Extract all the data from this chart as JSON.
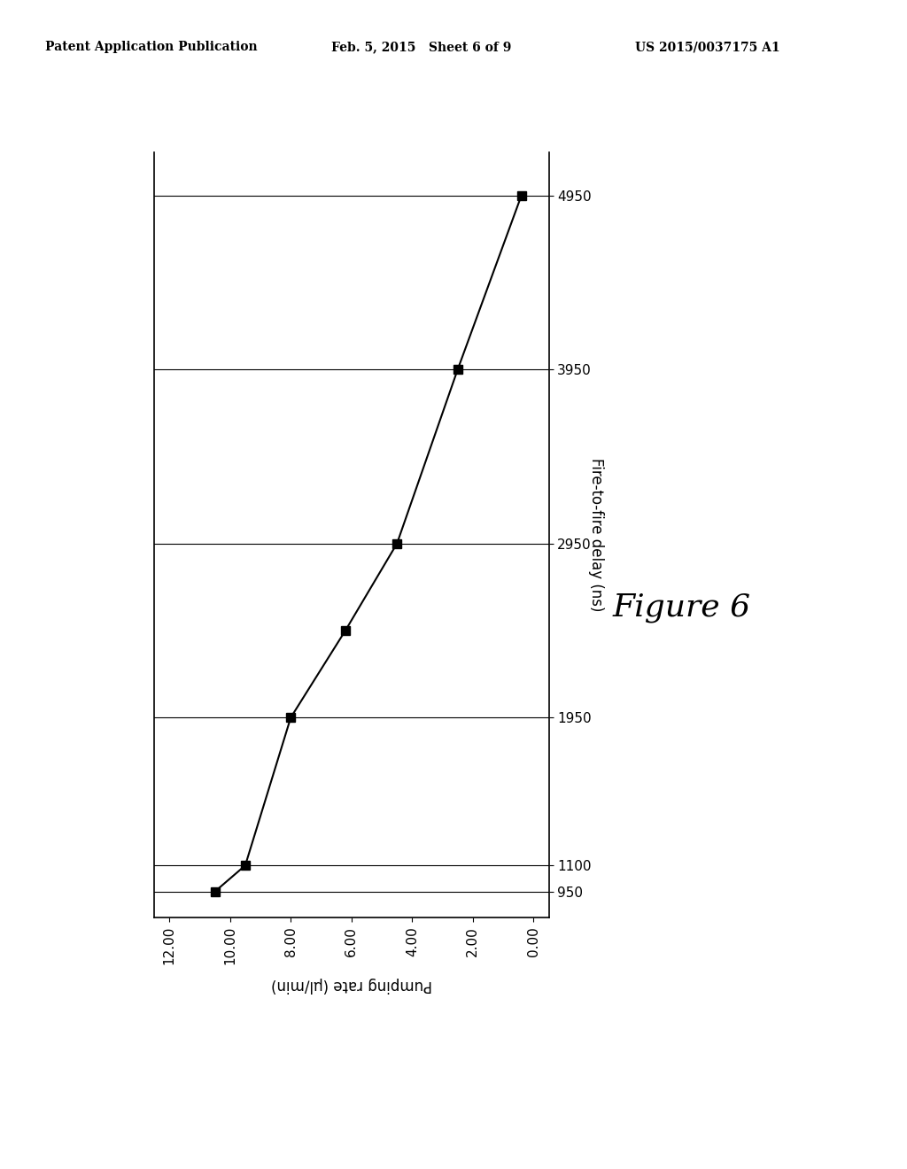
{
  "delay_values": [
    950,
    1100,
    1950,
    2450,
    2950,
    3950,
    4950
  ],
  "pump_values": [
    10.5,
    9.5,
    8.0,
    6.2,
    4.5,
    2.5,
    0.4
  ],
  "x_label": "Fire-to-fire delay (ns)",
  "y_label": "Pumping rate (µl/min)",
  "x_ticks": [
    950,
    1100,
    1950,
    2950,
    3950,
    4950
  ],
  "x_tick_labels": [
    "950",
    "1100",
    "1950",
    "2950",
    "3950",
    "4950"
  ],
  "y_ticks": [
    0.0,
    2.0,
    4.0,
    6.0,
    8.0,
    10.0,
    12.0
  ],
  "y_tick_labels": [
    "0.00",
    "2.00",
    "4.00",
    "6.00",
    "8.00",
    "10.00",
    "12.00"
  ],
  "figure_label": "Figure 6",
  "line_color": "#000000",
  "marker_color": "#000000",
  "background_color": "#ffffff",
  "header_left": "Patent Application Publication",
  "header_mid": "Feb. 5, 2015   Sheet 6 of 9",
  "header_right": "US 2015/0037175 A1"
}
